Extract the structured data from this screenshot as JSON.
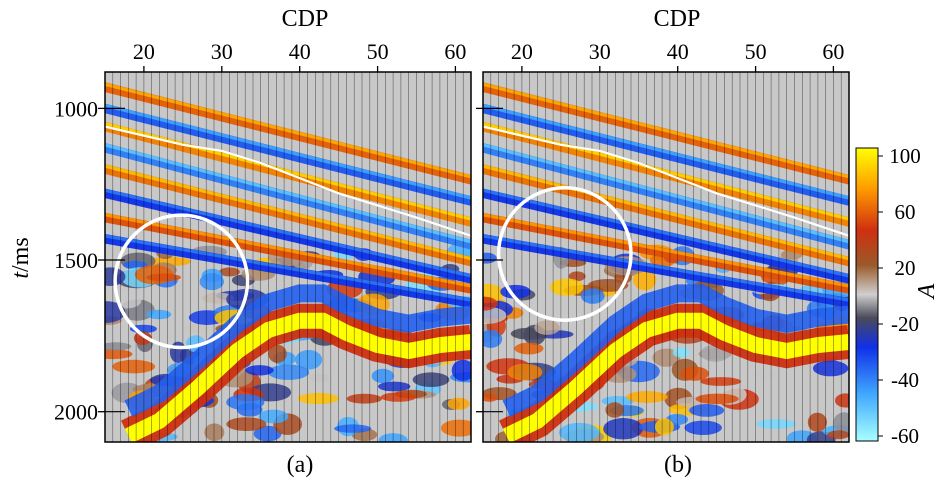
{
  "chart_data": [
    {
      "type": "heatmap",
      "panel_label": "(a)",
      "xlabel": "CDP",
      "ylabel_italic": "t",
      "ylabel_unit": "/ms",
      "xlim": [
        15,
        62
      ],
      "ylim": [
        2100,
        880
      ],
      "xticks": [
        20,
        30,
        40,
        50,
        60
      ],
      "yticks": [
        1000,
        1500,
        2000
      ],
      "annotations": [
        "white circle marking anomaly near CDP 24-26, t 1570 ms",
        "white horizon line dipping from CDP 15, 1060 ms to CDP 62, 1420 ms"
      ],
      "circle": {
        "cx": 24.8,
        "cy": 1570,
        "r_cdp": 8.5
      }
    },
    {
      "type": "heatmap",
      "panel_label": "(b)",
      "xlabel": "CDP",
      "xlim": [
        15,
        62
      ],
      "ylim": [
        2100,
        880
      ],
      "xticks": [
        20,
        30,
        40,
        50,
        60
      ],
      "yticks": [
        1000,
        1500,
        2000
      ],
      "circle": {
        "cx": 25.5,
        "cy": 1480,
        "r_cdp": 8.5
      }
    }
  ],
  "colorbar": {
    "label": "A",
    "min": -60,
    "max": 100,
    "ticks": [
      100,
      60,
      20,
      -20,
      -40,
      -60
    ],
    "colors": [
      "#ffff00",
      "#ff9900",
      "#cc2200",
      "#996633",
      "#cccccc",
      "#444466",
      "#1133ee",
      "#44aaff",
      "#99ffff"
    ]
  },
  "reflectors": [
    {
      "y0": 930,
      "slope": 6.5,
      "amp": 0.8
    },
    {
      "y0": 1000,
      "slope": 6.5,
      "amp": -0.7
    },
    {
      "y0": 1060,
      "slope": 6.7,
      "amp": 0.9
    },
    {
      "y0": 1130,
      "slope": 6.8,
      "amp": -0.8
    },
    {
      "y0": 1200,
      "slope": 6.5,
      "amp": 0.85
    },
    {
      "y0": 1280,
      "slope": 6.0,
      "amp": -0.6
    },
    {
      "y0": 1360,
      "slope": 5.0,
      "amp": 0.75
    },
    {
      "y0": 1430,
      "slope": 4.5,
      "amp": -0.6
    }
  ]
}
